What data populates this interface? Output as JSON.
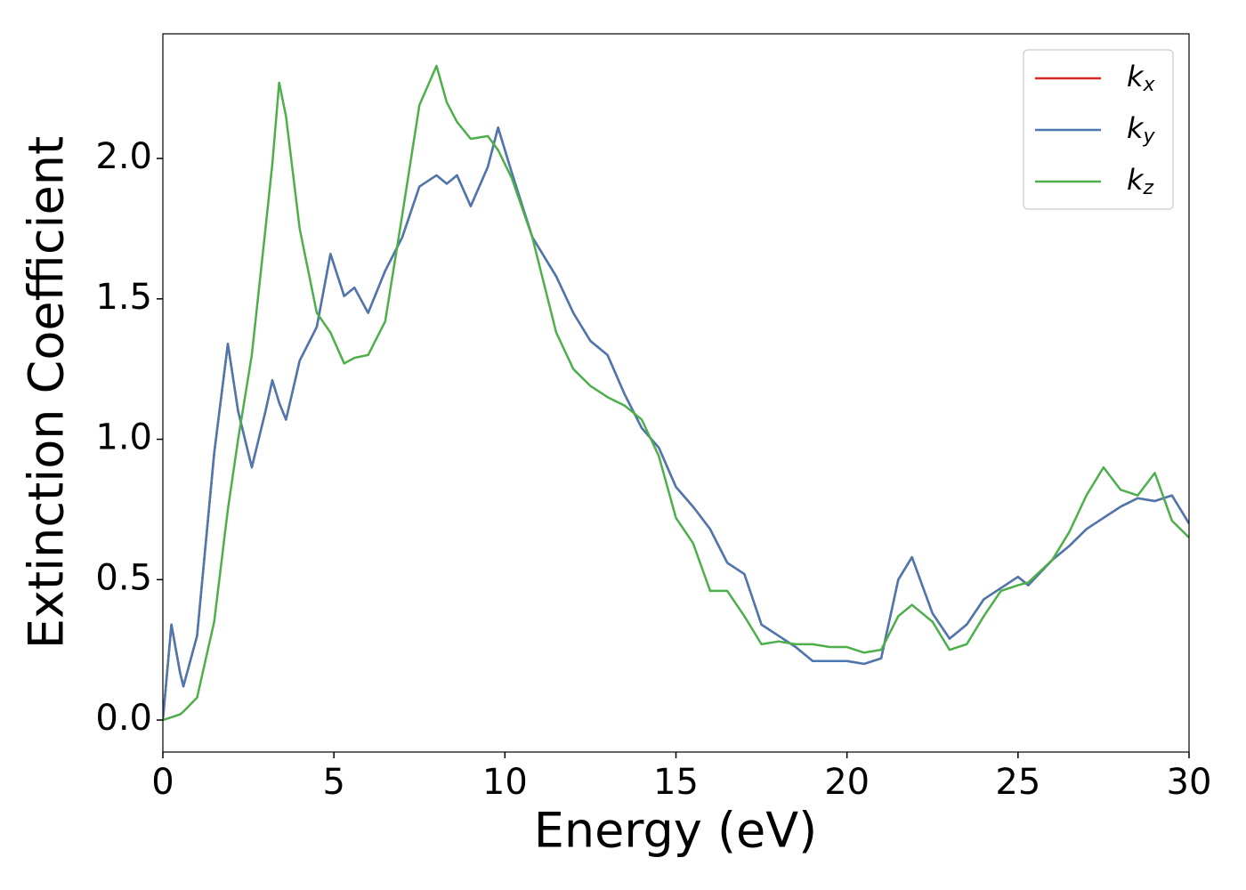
{
  "chart_data": {
    "type": "line",
    "xlabel": "Energy (eV)",
    "ylabel": "Extinction Coefficient",
    "x": [
      0,
      0.25,
      0.5,
      0.6,
      1.0,
      1.5,
      1.9,
      2.2,
      2.6,
      3.0,
      3.2,
      3.4,
      3.6,
      4.0,
      4.5,
      4.9,
      5.3,
      5.6,
      6.0,
      6.5,
      7.0,
      7.5,
      8.0,
      8.3,
      8.6,
      9.0,
      9.5,
      9.8,
      10.2,
      10.8,
      11.5,
      12.0,
      12.5,
      13.0,
      13.5,
      14.0,
      14.5,
      15.0,
      15.5,
      16.0,
      16.5,
      17.0,
      17.5,
      18.0,
      18.5,
      19.0,
      19.5,
      20.0,
      20.5,
      21.0,
      21.5,
      21.9,
      22.5,
      23.0,
      23.5,
      24.0,
      24.5,
      25.0,
      25.3,
      26.0,
      26.5,
      27.0,
      27.5,
      28.0,
      28.5,
      29.0,
      29.5,
      30.0
    ],
    "series": [
      {
        "name": "kx",
        "color": "#d62728",
        "values": [
          0.0,
          0.34,
          0.17,
          0.12,
          0.3,
          0.95,
          1.34,
          1.1,
          0.9,
          1.1,
          1.21,
          1.13,
          1.07,
          1.28,
          1.4,
          1.66,
          1.51,
          1.54,
          1.45,
          1.6,
          1.72,
          1.9,
          1.94,
          1.91,
          1.94,
          1.83,
          1.97,
          2.11,
          1.95,
          1.72,
          1.58,
          1.45,
          1.35,
          1.3,
          1.16,
          1.04,
          0.97,
          0.83,
          0.76,
          0.68,
          0.56,
          0.52,
          0.34,
          0.3,
          0.26,
          0.21,
          0.21,
          0.21,
          0.2,
          0.22,
          0.5,
          0.58,
          0.38,
          0.29,
          0.34,
          0.43,
          0.47,
          0.51,
          0.48,
          0.57,
          0.62,
          0.68,
          0.72,
          0.76,
          0.79,
          0.78,
          0.8,
          0.7
        ]
      },
      {
        "name": "ky",
        "color": "#4a78b0",
        "values": [
          0.0,
          0.34,
          0.17,
          0.12,
          0.3,
          0.95,
          1.34,
          1.1,
          0.9,
          1.1,
          1.21,
          1.13,
          1.07,
          1.28,
          1.4,
          1.66,
          1.51,
          1.54,
          1.45,
          1.6,
          1.72,
          1.9,
          1.94,
          1.91,
          1.94,
          1.83,
          1.97,
          2.11,
          1.95,
          1.72,
          1.58,
          1.45,
          1.35,
          1.3,
          1.16,
          1.04,
          0.97,
          0.83,
          0.76,
          0.68,
          0.56,
          0.52,
          0.34,
          0.3,
          0.26,
          0.21,
          0.21,
          0.21,
          0.2,
          0.22,
          0.5,
          0.58,
          0.38,
          0.29,
          0.34,
          0.43,
          0.47,
          0.51,
          0.48,
          0.57,
          0.62,
          0.68,
          0.72,
          0.76,
          0.79,
          0.78,
          0.8,
          0.7
        ]
      },
      {
        "name": "kz",
        "color": "#4daf4a",
        "values": [
          0.0,
          0.01,
          0.02,
          0.03,
          0.08,
          0.35,
          0.75,
          1.0,
          1.3,
          1.75,
          1.98,
          2.27,
          2.15,
          1.75,
          1.45,
          1.38,
          1.27,
          1.29,
          1.3,
          1.42,
          1.8,
          2.19,
          2.33,
          2.2,
          2.13,
          2.07,
          2.08,
          2.03,
          1.93,
          1.72,
          1.38,
          1.25,
          1.19,
          1.15,
          1.12,
          1.07,
          0.94,
          0.72,
          0.63,
          0.46,
          0.46,
          0.37,
          0.27,
          0.28,
          0.27,
          0.27,
          0.26,
          0.26,
          0.24,
          0.25,
          0.37,
          0.41,
          0.35,
          0.25,
          0.27,
          0.37,
          0.46,
          0.48,
          0.49,
          0.57,
          0.67,
          0.8,
          0.9,
          0.82,
          0.8,
          0.88,
          0.71,
          0.65
        ]
      }
    ],
    "xlim": [
      0,
      30
    ],
    "xticks": [
      0,
      5,
      10,
      15,
      20,
      25,
      30
    ],
    "ylim": [
      -0.114,
      2.444
    ],
    "yticks": [
      {
        "value": 0,
        "label": "0.0"
      },
      0.5,
      {
        "value": 1,
        "label": "1.0"
      },
      1.5,
      {
        "value": 2,
        "label": "2.0"
      }
    ],
    "legend": "upper right",
    "grid": false
  }
}
